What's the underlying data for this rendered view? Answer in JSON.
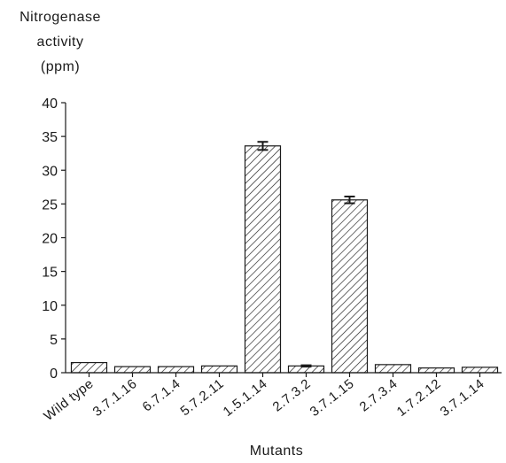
{
  "chart_data": {
    "type": "bar",
    "ylabel_lines": [
      "Nitrogenase",
      "activity",
      "(ppm)"
    ],
    "xlabel": "Mutants",
    "categories": [
      "Wild type",
      "3.7.1.16",
      "6.7.1.4",
      "5.7.2.11",
      "1.5.1.14",
      "2.7.3.2",
      "3.7.1.15",
      "2.7.3.4",
      "1.7.2.12",
      "3.7.1.14"
    ],
    "values": [
      1.5,
      0.9,
      0.9,
      1.0,
      33.6,
      1.0,
      25.6,
      1.2,
      0.7,
      0.8
    ],
    "errors": [
      0,
      0,
      0,
      0,
      0.6,
      0.1,
      0.5,
      0,
      0,
      0
    ],
    "ylim": [
      0,
      40
    ],
    "yticks": [
      0,
      5,
      10,
      15,
      20,
      25,
      30,
      35,
      40
    ],
    "grid": false,
    "legend": "none",
    "bar_fill": "diagonal-hatch",
    "colors": {
      "bar_stroke": "#1a1a1a",
      "axis": "#1a1a1a",
      "background": "#ffffff"
    }
  }
}
